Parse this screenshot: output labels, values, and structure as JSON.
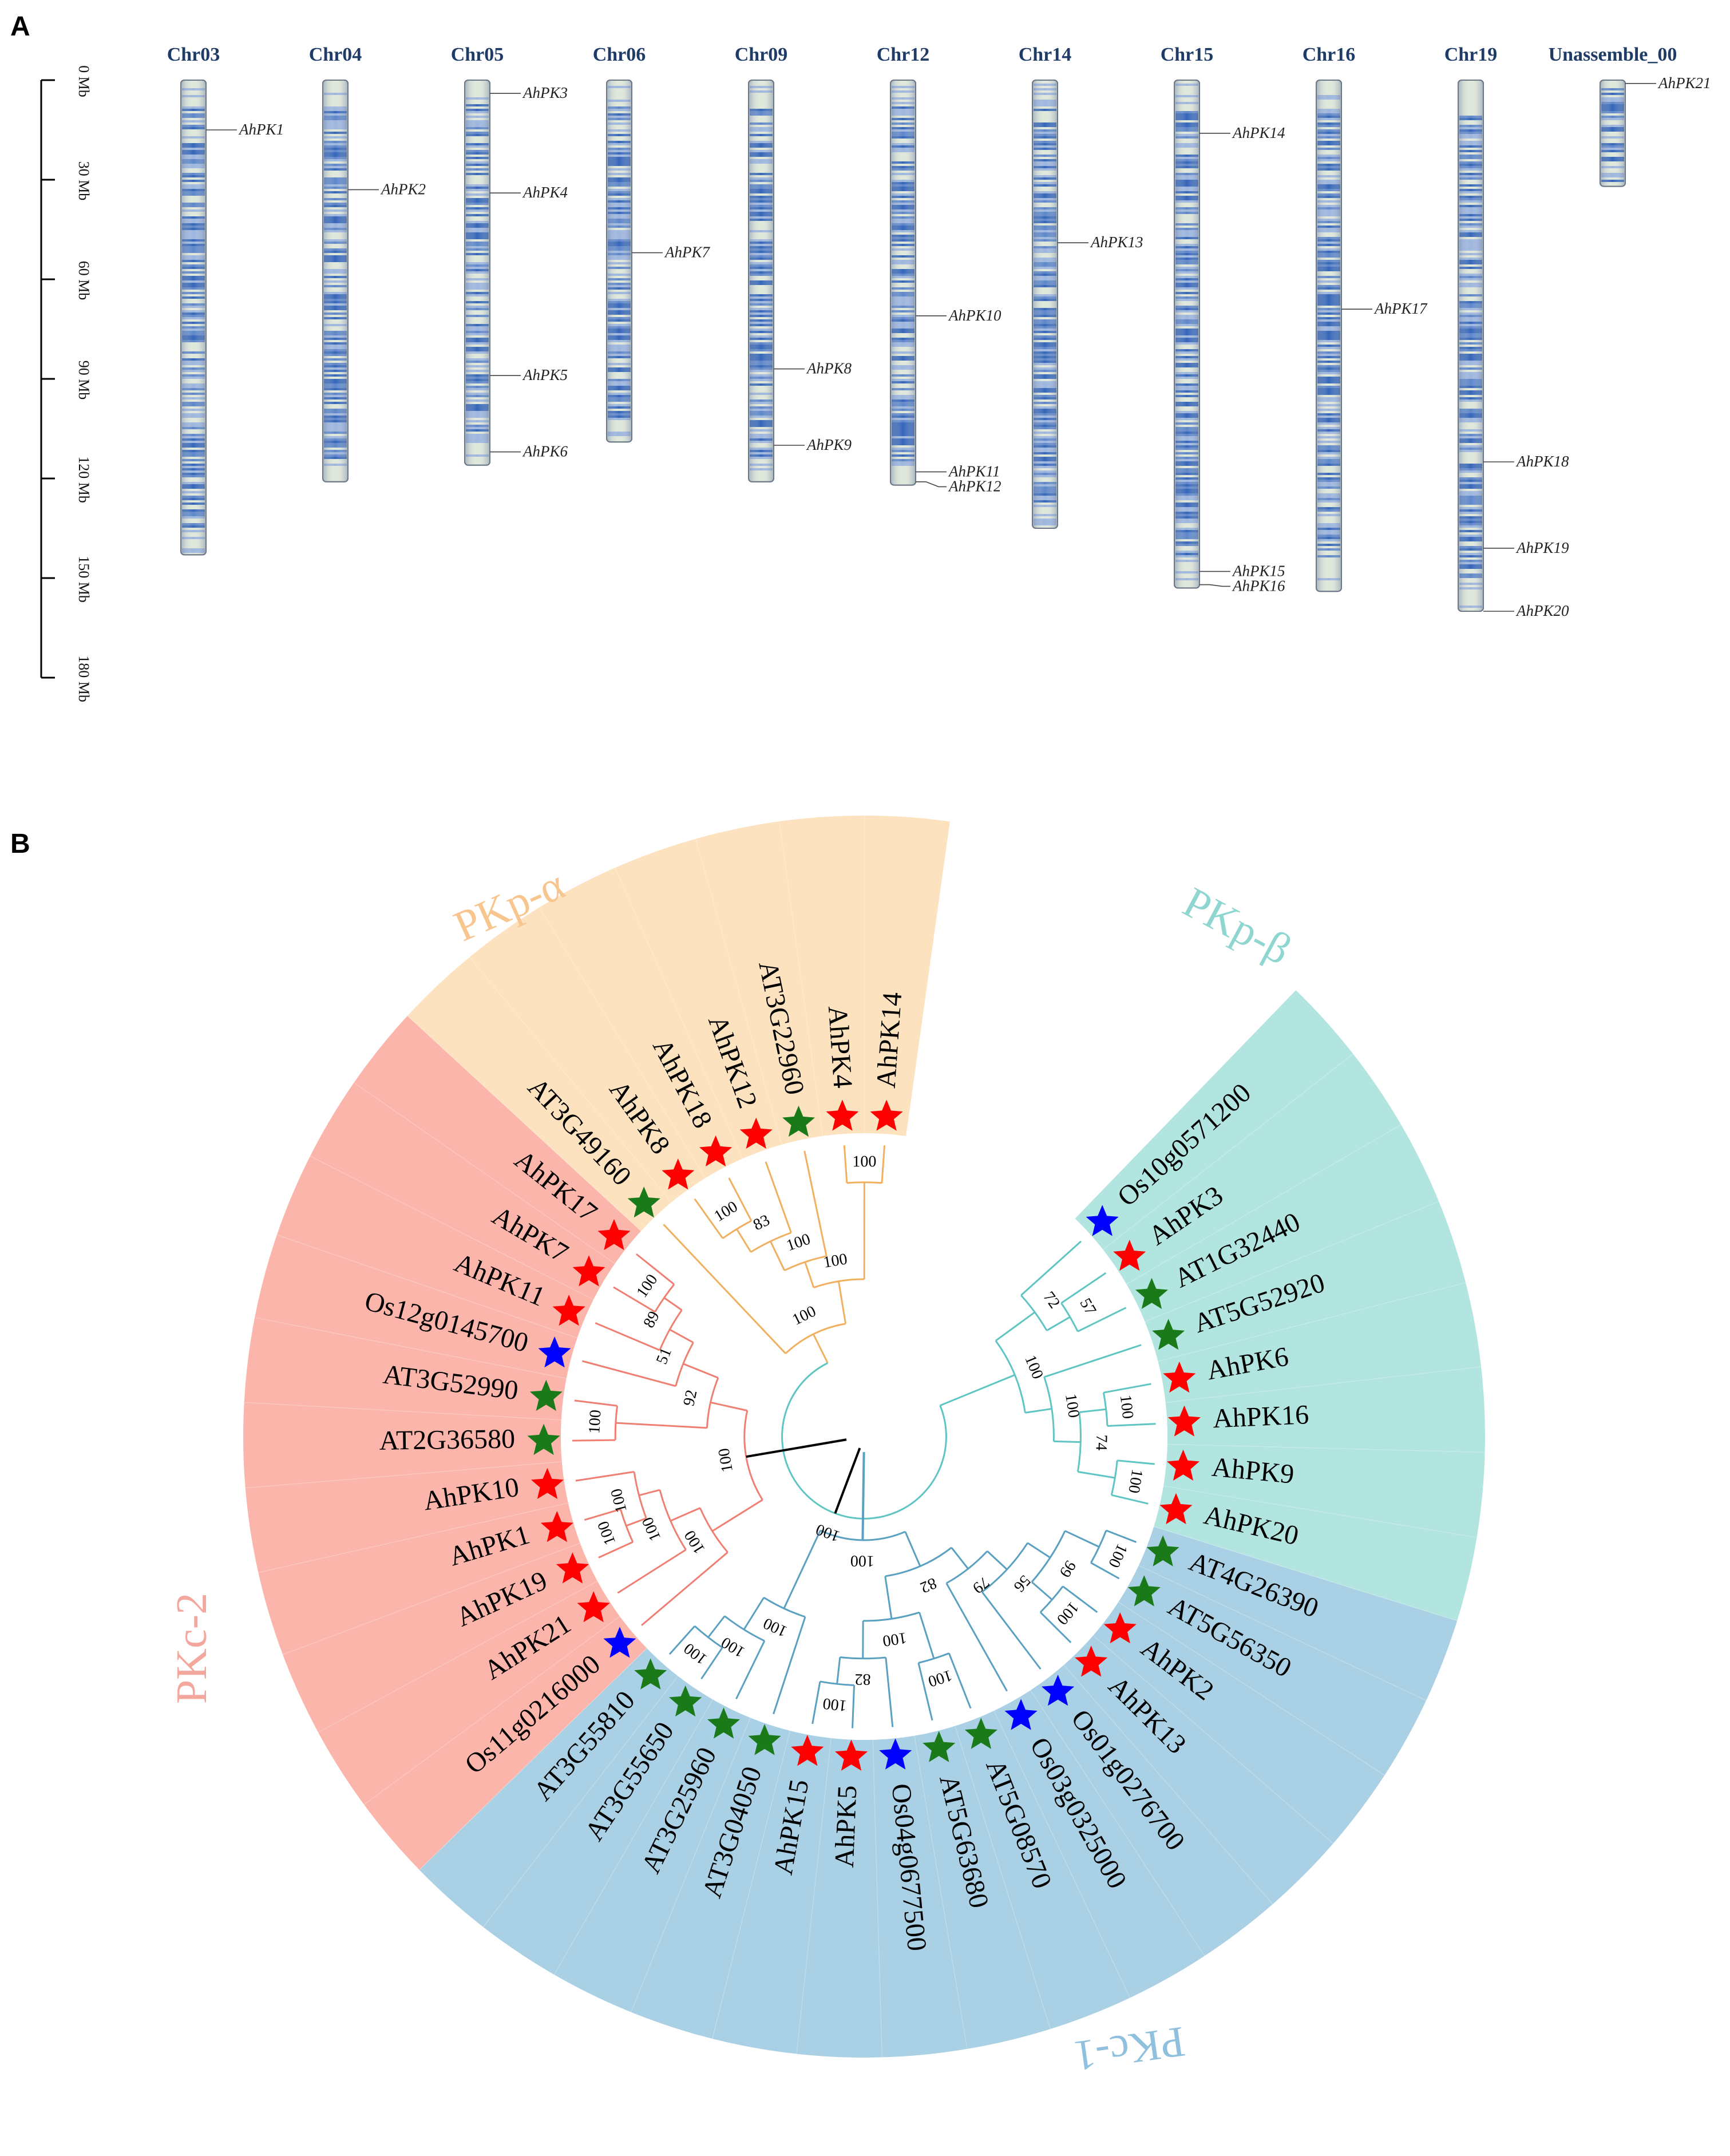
{
  "panels": {
    "a": "A",
    "b": "B"
  },
  "colors": {
    "chr_title": "#1f3c66",
    "chr_band": "#3f6fbd",
    "chr_base": "#dfe7d9",
    "star_arabidopsis": "#1a7a1a",
    "star_peanut": "#ff0000",
    "star_rice": "#0000ff",
    "pkp_alpha": "#fde2c0",
    "pkp_beta": "#b2e5e0",
    "pkc_2": "#fbb5aa",
    "pkc_1": "#a9d0e4",
    "branch_alpha": "#f0b060",
    "branch_beta": "#5ec5c2",
    "branch_c2": "#ef7f73",
    "branch_c1": "#5aa0c0"
  },
  "axis": {
    "ticks": [
      "0 Mb",
      "30 Mb",
      "60 Mb",
      "90 Mb",
      "120 Mb",
      "150 Mb",
      "180 Mb"
    ],
    "tick_values": [
      0,
      30,
      60,
      90,
      120,
      150,
      180
    ]
  },
  "chromosomes": [
    {
      "name": "Chr03",
      "length": 143,
      "genes": [
        {
          "name": "AhPK1",
          "pos": 15
        }
      ]
    },
    {
      "name": "Chr04",
      "length": 121,
      "genes": [
        {
          "name": "AhPK2",
          "pos": 33
        }
      ]
    },
    {
      "name": "Chr05",
      "length": 116,
      "genes": [
        {
          "name": "AhPK3",
          "pos": 4
        },
        {
          "name": "AhPK4",
          "pos": 34
        },
        {
          "name": "AhPK5",
          "pos": 89
        },
        {
          "name": "AhPK6",
          "pos": 112
        }
      ]
    },
    {
      "name": "Chr06",
      "length": 109,
      "genes": [
        {
          "name": "AhPK7",
          "pos": 52
        }
      ]
    },
    {
      "name": "Chr09",
      "length": 121,
      "genes": [
        {
          "name": "AhPK8",
          "pos": 87
        },
        {
          "name": "AhPK9",
          "pos": 110
        }
      ]
    },
    {
      "name": "Chr12",
      "length": 122,
      "genes": [
        {
          "name": "AhPK10",
          "pos": 71
        },
        {
          "name": "AhPK11",
          "pos": 118
        },
        {
          "name": "AhPK12",
          "pos": 121
        }
      ]
    },
    {
      "name": "Chr14",
      "length": 135,
      "genes": [
        {
          "name": "AhPK13",
          "pos": 49
        }
      ]
    },
    {
      "name": "Chr15",
      "length": 153,
      "genes": [
        {
          "name": "AhPK14",
          "pos": 16
        },
        {
          "name": "AhPK15",
          "pos": 148
        },
        {
          "name": "AhPK16",
          "pos": 152
        }
      ]
    },
    {
      "name": "Chr16",
      "length": 154,
      "genes": [
        {
          "name": "AhPK17",
          "pos": 69
        }
      ]
    },
    {
      "name": "Chr19",
      "length": 160,
      "genes": [
        {
          "name": "AhPK18",
          "pos": 115
        },
        {
          "name": "AhPK19",
          "pos": 141
        },
        {
          "name": "AhPK20",
          "pos": 160
        }
      ]
    },
    {
      "name": "Unassemble_00",
      "length": 32,
      "genes": [
        {
          "name": "AhPK21",
          "pos": 1
        }
      ]
    }
  ],
  "tree": {
    "clades": [
      {
        "key": "pkp_alpha",
        "label": "PKp-α",
        "color": "#fde2c0",
        "text_color": "#f7c58d"
      },
      {
        "key": "pkp_beta",
        "label": "PKp-β",
        "color": "#b2e5e0",
        "text_color": "#8fd6d1"
      },
      {
        "key": "pkc_2",
        "label": "PKc-2",
        "color": "#fbb5aa",
        "text_color": "#f4a79c"
      },
      {
        "key": "pkc_1",
        "label": "PKc-1",
        "color": "#a9d0e4",
        "text_color": "#8fc1df"
      }
    ],
    "leaves": [
      {
        "name": "AhPK14",
        "species": "peanut",
        "clade": "pkp_alpha"
      },
      {
        "name": "AhPK4",
        "species": "peanut",
        "clade": "pkp_alpha"
      },
      {
        "name": "AT3G22960",
        "species": "arabidopsis",
        "clade": "pkp_alpha"
      },
      {
        "name": "AhPK12",
        "species": "peanut",
        "clade": "pkp_alpha"
      },
      {
        "name": "AhPK18",
        "species": "peanut",
        "clade": "pkp_alpha"
      },
      {
        "name": "AhPK8",
        "species": "peanut",
        "clade": "pkp_alpha"
      },
      {
        "name": "AT3G49160",
        "species": "arabidopsis",
        "clade": "pkp_alpha"
      },
      {
        "name": "AhPK17",
        "species": "peanut",
        "clade": "pkc_2"
      },
      {
        "name": "AhPK7",
        "species": "peanut",
        "clade": "pkc_2"
      },
      {
        "name": "AhPK11",
        "species": "peanut",
        "clade": "pkc_2"
      },
      {
        "name": "Os12g0145700",
        "species": "rice",
        "clade": "pkc_2"
      },
      {
        "name": "AT3G52990",
        "species": "arabidopsis",
        "clade": "pkc_2"
      },
      {
        "name": "AT2G36580",
        "species": "arabidopsis",
        "clade": "pkc_2"
      },
      {
        "name": "AhPK10",
        "species": "peanut",
        "clade": "pkc_2"
      },
      {
        "name": "AhPK1",
        "species": "peanut",
        "clade": "pkc_2"
      },
      {
        "name": "AhPK19",
        "species": "peanut",
        "clade": "pkc_2"
      },
      {
        "name": "AhPK21",
        "species": "peanut",
        "clade": "pkc_2"
      },
      {
        "name": "Os11g0216000",
        "species": "rice",
        "clade": "pkc_2"
      },
      {
        "name": "AT3G55810",
        "species": "arabidopsis",
        "clade": "pkc_1"
      },
      {
        "name": "AT3G55650",
        "species": "arabidopsis",
        "clade": "pkc_1"
      },
      {
        "name": "AT3G25960",
        "species": "arabidopsis",
        "clade": "pkc_1"
      },
      {
        "name": "AT3G04050",
        "species": "arabidopsis",
        "clade": "pkc_1"
      },
      {
        "name": "AhPK15",
        "species": "peanut",
        "clade": "pkc_1"
      },
      {
        "name": "AhPK5",
        "species": "peanut",
        "clade": "pkc_1"
      },
      {
        "name": "Os04g0677500",
        "species": "rice",
        "clade": "pkc_1"
      },
      {
        "name": "AT5G63680",
        "species": "arabidopsis",
        "clade": "pkc_1"
      },
      {
        "name": "AT5G08570",
        "species": "arabidopsis",
        "clade": "pkc_1"
      },
      {
        "name": "Os03g0325000",
        "species": "rice",
        "clade": "pkc_1"
      },
      {
        "name": "Os01g0276700",
        "species": "rice",
        "clade": "pkc_1"
      },
      {
        "name": "AhPK13",
        "species": "peanut",
        "clade": "pkc_1"
      },
      {
        "name": "AhPK2",
        "species": "peanut",
        "clade": "pkc_1"
      },
      {
        "name": "AT5G56350",
        "species": "arabidopsis",
        "clade": "pkc_1"
      },
      {
        "name": "AT4G26390",
        "species": "arabidopsis",
        "clade": "pkc_1"
      },
      {
        "name": "AhPK20",
        "species": "peanut",
        "clade": "pkp_beta"
      },
      {
        "name": "AhPK9",
        "species": "peanut",
        "clade": "pkp_beta"
      },
      {
        "name": "AhPK16",
        "species": "peanut",
        "clade": "pkp_beta"
      },
      {
        "name": "AhPK6",
        "species": "peanut",
        "clade": "pkp_beta"
      },
      {
        "name": "AT5G52920",
        "species": "arabidopsis",
        "clade": "pkp_beta"
      },
      {
        "name": "AT1G32440",
        "species": "arabidopsis",
        "clade": "pkp_beta"
      },
      {
        "name": "AhPK3",
        "species": "peanut",
        "clade": "pkp_beta"
      },
      {
        "name": "Os10g0571200",
        "species": "rice",
        "clade": "pkp_beta"
      }
    ],
    "nodes": [
      {
        "id": "a1",
        "children": [
          0,
          1
        ],
        "support": 100,
        "clade": "pkp_alpha",
        "depth": 0.86
      },
      {
        "id": "a2",
        "children": [
          4,
          5
        ],
        "support": 100,
        "clade": "pkp_alpha",
        "depth": 0.82
      },
      {
        "id": "a3",
        "children": [
          "a2",
          3
        ],
        "support": 83,
        "clade": "pkp_alpha",
        "depth": 0.72
      },
      {
        "id": "a4",
        "children": [
          2,
          "a3"
        ],
        "support": 100,
        "clade": "pkp_alpha",
        "depth": 0.6
      },
      {
        "id": "a5",
        "children": [
          "a4",
          "a1"
        ],
        "support": 100,
        "clade": "pkp_alpha",
        "depth": 0.5
      },
      {
        "id": "a6",
        "children": [
          6,
          "a5"
        ],
        "support": 100,
        "clade": "pkp_alpha",
        "depth": 0.34
      },
      {
        "id": "c1",
        "children": [
          7,
          8
        ],
        "support": 100,
        "clade": "pkc_2",
        "depth": 0.82
      },
      {
        "id": "c2",
        "children": [
          "c1",
          9
        ],
        "support": 89,
        "clade": "pkc_2",
        "depth": 0.74
      },
      {
        "id": "c3",
        "children": [
          "c2",
          10
        ],
        "support": 51,
        "clade": "pkc_2",
        "depth": 0.64
      },
      {
        "id": "c4",
        "children": [
          11,
          12
        ],
        "support": 100,
        "clade": "pkc_2",
        "depth": 0.84
      },
      {
        "id": "c5",
        "children": [
          "c3",
          "c4"
        ],
        "support": 92,
        "clade": "pkc_2",
        "depth": 0.5
      },
      {
        "id": "c6",
        "children": [
          14,
          15
        ],
        "support": 100,
        "clade": "pkc_2",
        "depth": 0.86
      },
      {
        "id": "c7",
        "children": [
          13,
          "c6"
        ],
        "support": 100,
        "clade": "pkc_2",
        "depth": 0.78
      },
      {
        "id": "c8",
        "children": [
          "c7",
          16
        ],
        "support": 100,
        "clade": "pkc_2",
        "depth": 0.7
      },
      {
        "id": "c9",
        "children": [
          "c8",
          17
        ],
        "support": 100,
        "clade": "pkc_2",
        "depth": 0.58
      },
      {
        "id": "c10",
        "children": [
          "c5",
          "c9"
        ],
        "support": 100,
        "clade": "pkc_2",
        "depth": 0.36
      },
      {
        "id": "d1",
        "children": [
          18,
          19
        ],
        "support": 100,
        "clade": "pkc_1",
        "depth": 0.86
      },
      {
        "id": "d2",
        "children": [
          "d1",
          20
        ],
        "support": 100,
        "clade": "pkc_1",
        "depth": 0.76
      },
      {
        "id": "d3",
        "children": [
          "d2",
          21
        ],
        "support": 100,
        "clade": "pkc_1",
        "depth": 0.62
      },
      {
        "id": "d4",
        "children": [
          22,
          23
        ],
        "support": 100,
        "clade": "pkc_1",
        "depth": 0.84
      },
      {
        "id": "d5",
        "children": [
          "d4",
          24
        ],
        "support": 82,
        "clade": "pkc_1",
        "depth": 0.74
      },
      {
        "id": "d6",
        "children": [
          25,
          26
        ],
        "support": 100,
        "clade": "pkc_1",
        "depth": 0.78
      },
      {
        "id": "d7",
        "children": [
          "d5",
          "d6"
        ],
        "support": 100,
        "clade": "pkc_1",
        "depth": 0.6
      },
      {
        "id": "d8",
        "children": [
          31,
          32
        ],
        "support": 100,
        "clade": "pkc_1",
        "depth": 0.88
      },
      {
        "id": "d9",
        "children": [
          29,
          30
        ],
        "support": 100,
        "clade": "pkc_1",
        "depth": 0.84
      },
      {
        "id": "d10",
        "children": [
          "d9",
          "d8"
        ],
        "support": 99,
        "clade": "pkc_1",
        "depth": 0.74
      },
      {
        "id": "d11",
        "children": [
          28,
          "d10"
        ],
        "support": 56,
        "clade": "pkc_1",
        "depth": 0.64
      },
      {
        "id": "d12",
        "children": [
          27,
          "d11"
        ],
        "support": 79,
        "clade": "pkc_1",
        "depth": 0.54
      },
      {
        "id": "d13",
        "children": [
          "d7",
          "d12"
        ],
        "support": 82,
        "clade": "pkc_1",
        "depth": 0.44
      },
      {
        "id": "d14",
        "children": [
          "d3",
          "d13"
        ],
        "support": 100,
        "clade": "pkc_1",
        "depth": 0.3
      },
      {
        "id": "b1",
        "children": [
          33,
          34
        ],
        "support": 100,
        "clade": "pkp_beta",
        "depth": 0.86
      },
      {
        "id": "b2",
        "children": [
          35,
          36
        ],
        "support": 100,
        "clade": "pkp_beta",
        "depth": 0.82
      },
      {
        "id": "b3",
        "children": [
          "b2",
          "b1"
        ],
        "support": 74,
        "clade": "pkp_beta",
        "depth": 0.72
      },
      {
        "id": "b4",
        "children": [
          37,
          "b3"
        ],
        "support": 100,
        "clade": "pkp_beta",
        "depth": 0.62
      },
      {
        "id": "b5",
        "children": [
          38,
          39
        ],
        "support": 57,
        "clade": "pkp_beta",
        "depth": 0.8
      },
      {
        "id": "b6",
        "children": [
          "b5",
          40
        ],
        "support": 72,
        "clade": "pkp_beta",
        "depth": 0.7
      },
      {
        "id": "b7",
        "children": [
          "b6",
          "b4"
        ],
        "support": 100,
        "clade": "pkp_beta",
        "depth": 0.52
      },
      {
        "id": "b8",
        "children": [
          "b7",
          "a6"
        ],
        "support": 100,
        "clade": "pkp_beta",
        "depth": 0.22
      }
    ]
  }
}
